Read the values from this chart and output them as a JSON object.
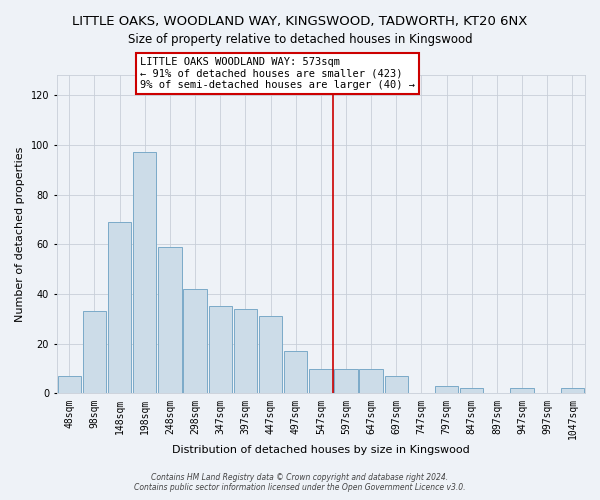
{
  "title": "LITTLE OAKS, WOODLAND WAY, KINGSWOOD, TADWORTH, KT20 6NX",
  "subtitle": "Size of property relative to detached houses in Kingswood",
  "xlabel": "Distribution of detached houses by size in Kingswood",
  "ylabel": "Number of detached properties",
  "bar_labels": [
    "48sqm",
    "98sqm",
    "148sqm",
    "198sqm",
    "248sqm",
    "298sqm",
    "347sqm",
    "397sqm",
    "447sqm",
    "497sqm",
    "547sqm",
    "597sqm",
    "647sqm",
    "697sqm",
    "747sqm",
    "797sqm",
    "847sqm",
    "897sqm",
    "947sqm",
    "997sqm",
    "1047sqm"
  ],
  "bar_values": [
    7,
    33,
    69,
    97,
    59,
    42,
    35,
    34,
    31,
    17,
    10,
    10,
    10,
    7,
    0,
    3,
    2,
    0,
    2,
    0,
    2
  ],
  "bar_color": "#ccdce8",
  "bar_edge_color": "#7aaac8",
  "ylim": [
    0,
    128
  ],
  "yticks": [
    0,
    20,
    40,
    60,
    80,
    100,
    120
  ],
  "vline_x": 10.5,
  "vline_color": "#cc0000",
  "annotation_text": "LITTLE OAKS WOODLAND WAY: 573sqm\n← 91% of detached houses are smaller (423)\n9% of semi-detached houses are larger (40) →",
  "annotation_box_color": "#ffffff",
  "annotation_box_edge": "#cc0000",
  "footer1": "Contains HM Land Registry data © Crown copyright and database right 2024.",
  "footer2": "Contains public sector information licensed under the Open Government Licence v3.0.",
  "bg_color": "#eef2f7",
  "grid_color": "#c8cfd8",
  "title_fontsize": 9.5,
  "subtitle_fontsize": 8.5,
  "xlabel_fontsize": 8,
  "ylabel_fontsize": 8,
  "tick_fontsize": 7,
  "ann_fontsize": 7.5
}
